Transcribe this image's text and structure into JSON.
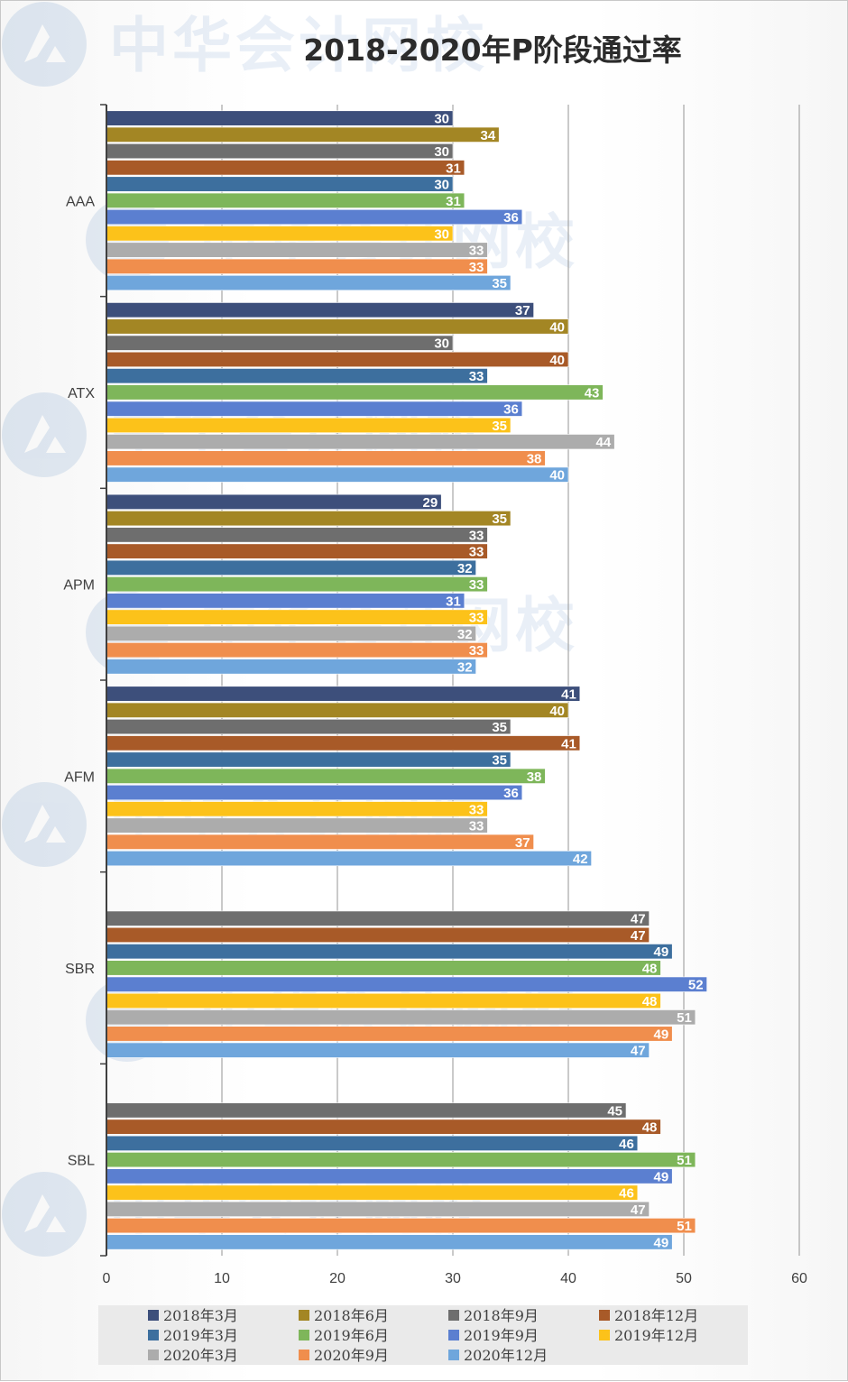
{
  "chart_data": {
    "type": "bar",
    "orientation": "horizontal",
    "title": "2018-2020年P阶段通过率",
    "watermark": "中华会计网校",
    "xlim": [
      0,
      60
    ],
    "xticks": [
      0,
      10,
      20,
      30,
      40,
      50,
      60
    ],
    "grid": true,
    "legend_position": "bottom",
    "categories": [
      "AAA",
      "ATX",
      "APM",
      "AFM",
      "SBR",
      "SBL"
    ],
    "series": [
      {
        "name": "2018年3月",
        "color": "#3d4f7b",
        "values": [
          30,
          37,
          29,
          41,
          null,
          null
        ]
      },
      {
        "name": "2018年6月",
        "color": "#a38624",
        "values": [
          34,
          40,
          35,
          40,
          null,
          null
        ]
      },
      {
        "name": "2018年9月",
        "color": "#6e6e6e",
        "values": [
          30,
          30,
          33,
          35,
          47,
          45
        ]
      },
      {
        "name": "2018年12月",
        "color": "#a85a28",
        "values": [
          31,
          40,
          33,
          41,
          47,
          48
        ]
      },
      {
        "name": "2019年3月",
        "color": "#3d6f9e",
        "values": [
          30,
          33,
          32,
          35,
          49,
          46
        ]
      },
      {
        "name": "2019年6月",
        "color": "#7eb65a",
        "values": [
          31,
          43,
          33,
          38,
          48,
          51
        ]
      },
      {
        "name": "2019年9月",
        "color": "#5b7fd0",
        "values": [
          36,
          36,
          31,
          36,
          52,
          49
        ]
      },
      {
        "name": "2019年12月",
        "color": "#fcc21a",
        "values": [
          30,
          35,
          33,
          33,
          48,
          46
        ]
      },
      {
        "name": "2020年3月",
        "color": "#acacac",
        "values": [
          33,
          44,
          32,
          33,
          51,
          47
        ]
      },
      {
        "name": "2020年9月",
        "color": "#f08e4d",
        "values": [
          33,
          38,
          33,
          37,
          49,
          51
        ]
      },
      {
        "name": "2020年12月",
        "color": "#6fa6dc",
        "values": [
          35,
          40,
          32,
          42,
          47,
          49
        ]
      }
    ]
  }
}
